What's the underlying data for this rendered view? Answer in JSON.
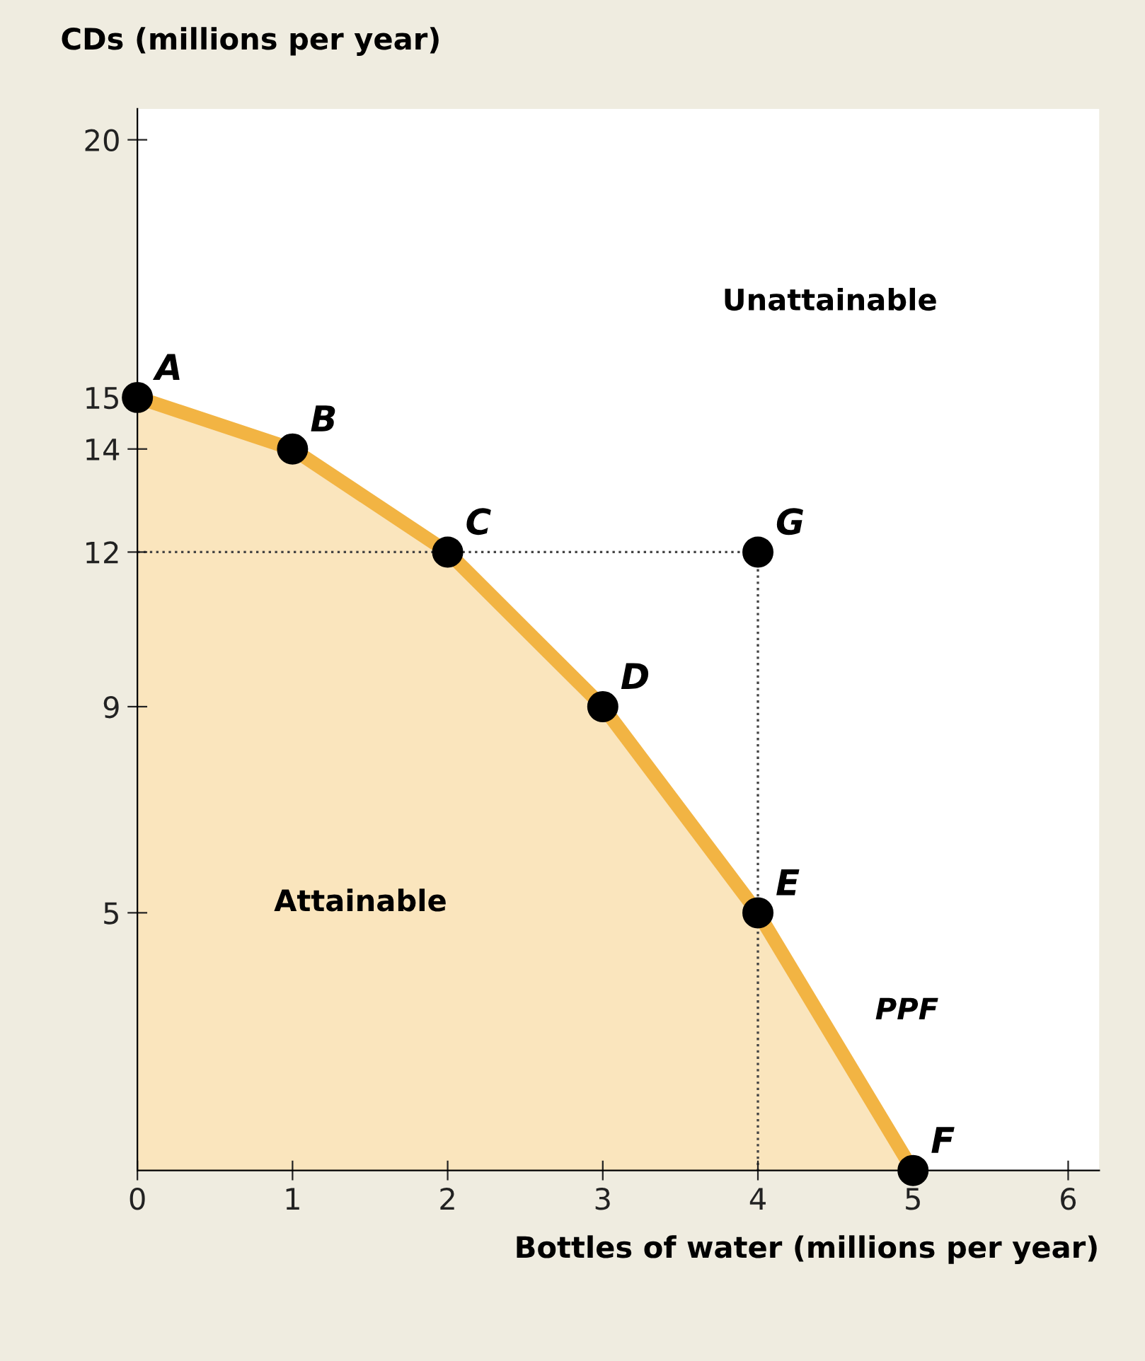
{
  "chart_data": {
    "type": "area",
    "ylabel": "CDs (millions per year)",
    "xlabel": "Bottles of water (millions per year)",
    "xlim": [
      0,
      6.2
    ],
    "ylim": [
      0,
      20.6
    ],
    "xticks": [
      0,
      1,
      2,
      3,
      4,
      5,
      6
    ],
    "yticks": [
      5,
      9,
      12,
      14,
      15,
      20
    ],
    "grid": false,
    "legend": false,
    "series": [
      {
        "color": "#f2b443",
        "x": [
          0,
          1,
          2,
          3,
          4,
          5
        ],
        "values": [
          15,
          14,
          12,
          9,
          5,
          0
        ]
      },
      {
        "type": "line",
        "line_style": "dotted",
        "color": "#444444",
        "x": [
          0,
          4,
          4
        ],
        "values": [
          12,
          12,
          0
        ]
      },
      {
        "type": "scatter",
        "marker": "circle",
        "color": "#000000",
        "x": [
          0,
          1,
          2,
          3,
          4,
          5
        ],
        "values": [
          15,
          14,
          12,
          9,
          5,
          0
        ]
      },
      {
        "type": "scatter",
        "marker": "circle",
        "color": "#000000",
        "x": [
          4
        ],
        "values": [
          12
        ]
      }
    ],
    "annotations": [
      {
        "text": "A",
        "x": 0,
        "y": 15
      },
      {
        "text": "B",
        "x": 1,
        "y": 14
      },
      {
        "text": "C",
        "x": 2,
        "y": 12
      },
      {
        "text": "D",
        "x": 3,
        "y": 9
      },
      {
        "text": "E",
        "x": 4,
        "y": 5
      },
      {
        "text": "F",
        "x": 5,
        "y": 0
      },
      {
        "text": "G",
        "x": 4,
        "y": 12
      },
      "Unattainable",
      "Attainable",
      "PPF"
    ]
  }
}
